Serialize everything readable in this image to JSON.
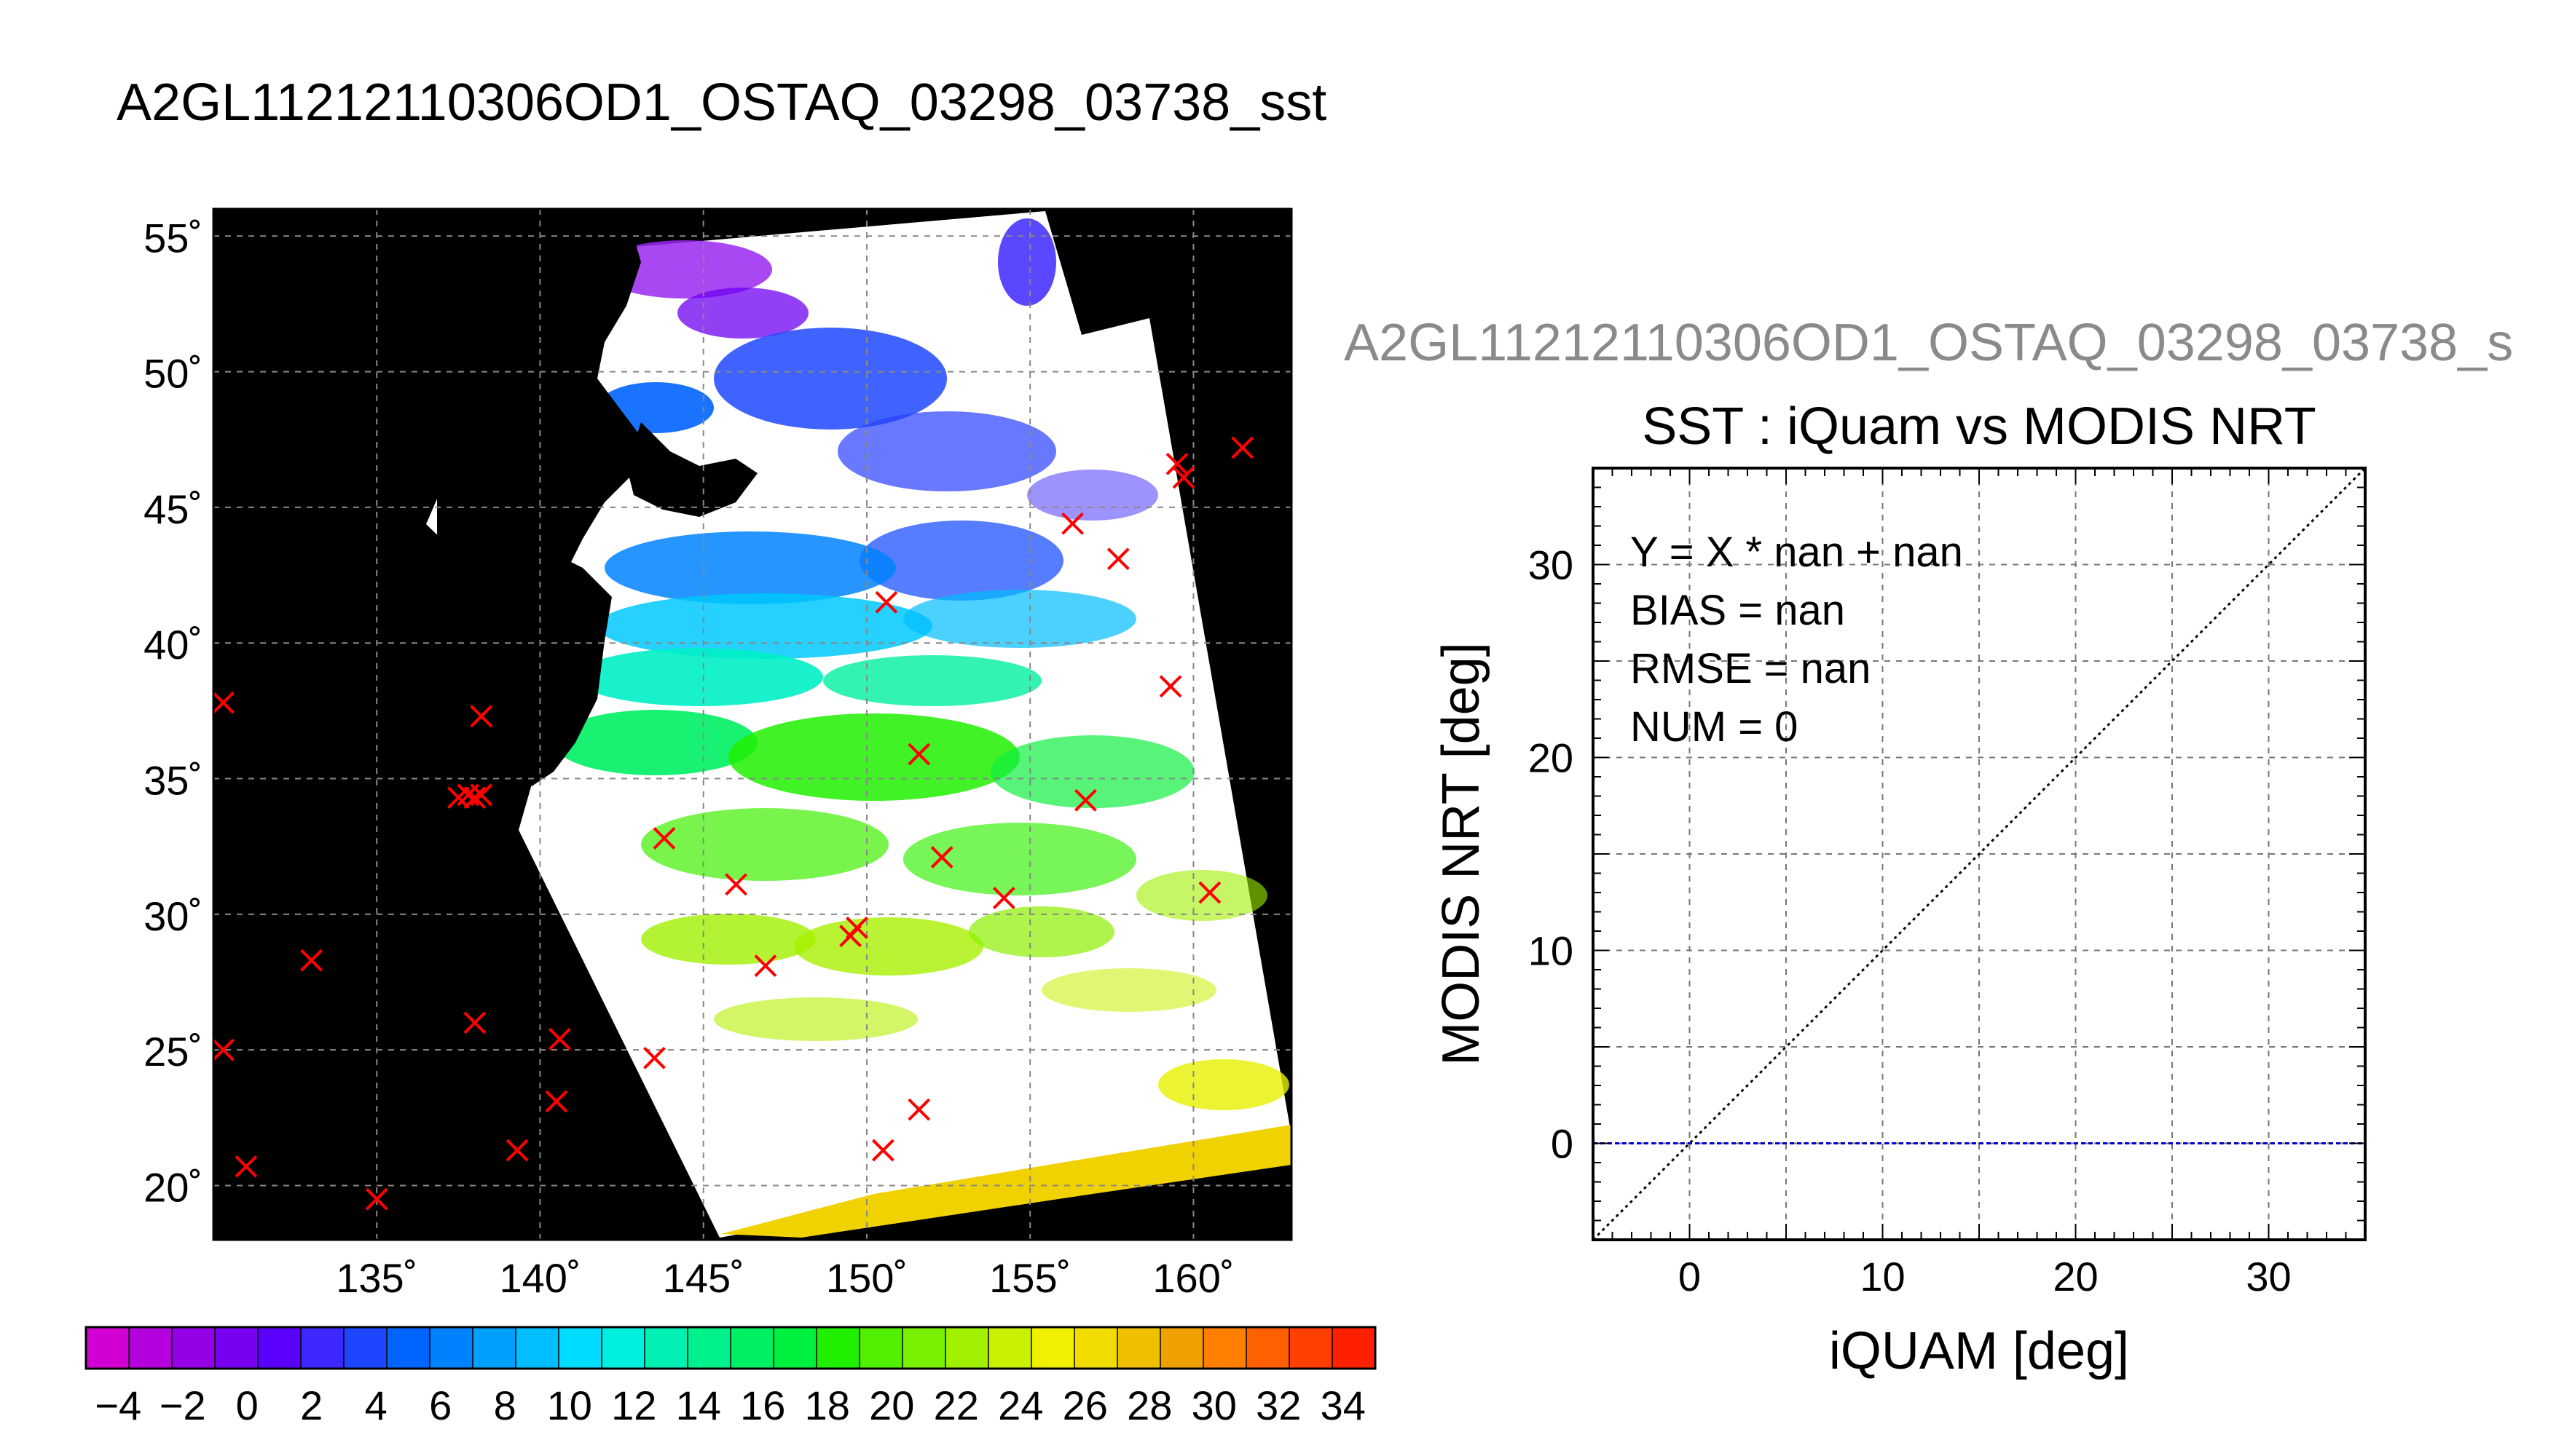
{
  "figure_title": "A2GL11212110306OD1_OSTAQ_03298_03738_sst",
  "right_subtitle_truncated": "A2GL11212110306OD1_OSTAQ_03298_03738_s",
  "chart_data": [
    {
      "type": "heatmap",
      "name": "sst-map",
      "lon_range": [
        130,
        163
      ],
      "lat_range": [
        18,
        56
      ],
      "lon_ticks": [
        135,
        140,
        145,
        150,
        155,
        160
      ],
      "lat_ticks": [
        20,
        25,
        30,
        35,
        40,
        45,
        50,
        55
      ],
      "lon_tick_labels": [
        "135˚",
        "140˚",
        "145˚",
        "150˚",
        "155˚",
        "160˚"
      ],
      "lat_tick_labels": [
        "20˚",
        "25˚",
        "30˚",
        "35˚",
        "40˚",
        "45˚",
        "50˚",
        "55˚"
      ],
      "grid": true,
      "background_color": "#000000",
      "swath_color": "#ffffff",
      "marker_color": "#ff0000",
      "buoy_markers": [
        {
          "lon": 130.3,
          "lat": 37.8
        },
        {
          "lon": 130.3,
          "lat": 25.0
        },
        {
          "lon": 131.0,
          "lat": 20.7
        },
        {
          "lon": 133.0,
          "lat": 28.3
        },
        {
          "lon": 135.0,
          "lat": 19.5
        },
        {
          "lon": 137.5,
          "lat": 34.3
        },
        {
          "lon": 137.8,
          "lat": 34.4
        },
        {
          "lon": 138.0,
          "lat": 34.3
        },
        {
          "lon": 138.2,
          "lat": 34.4
        },
        {
          "lon": 138.2,
          "lat": 37.3
        },
        {
          "lon": 138.0,
          "lat": 26.0
        },
        {
          "lon": 139.3,
          "lat": 21.3
        },
        {
          "lon": 140.5,
          "lat": 23.1
        },
        {
          "lon": 140.6,
          "lat": 25.4
        },
        {
          "lon": 143.5,
          "lat": 24.7
        },
        {
          "lon": 143.8,
          "lat": 32.8
        },
        {
          "lon": 146.0,
          "lat": 31.1
        },
        {
          "lon": 146.9,
          "lat": 28.1
        },
        {
          "lon": 149.5,
          "lat": 29.2
        },
        {
          "lon": 149.7,
          "lat": 29.5
        },
        {
          "lon": 150.5,
          "lat": 21.3
        },
        {
          "lon": 150.6,
          "lat": 41.5
        },
        {
          "lon": 151.6,
          "lat": 22.8
        },
        {
          "lon": 151.6,
          "lat": 35.9
        },
        {
          "lon": 152.3,
          "lat": 32.1
        },
        {
          "lon": 154.2,
          "lat": 30.6
        },
        {
          "lon": 156.3,
          "lat": 44.4
        },
        {
          "lon": 156.7,
          "lat": 34.2
        },
        {
          "lon": 157.7,
          "lat": 43.1
        },
        {
          "lon": 159.3,
          "lat": 38.4
        },
        {
          "lon": 159.5,
          "lat": 46.6
        },
        {
          "lon": 159.7,
          "lat": 46.1
        },
        {
          "lon": 160.5,
          "lat": 30.8
        },
        {
          "lon": 161.5,
          "lat": 47.2
        }
      ]
    },
    {
      "type": "colorbar",
      "name": "sst-colorbar",
      "range": [
        -5,
        35
      ],
      "tick_labels": [
        "−4",
        "−2",
        "0",
        "2",
        "4",
        "6",
        "8",
        "10",
        "12",
        "14",
        "16",
        "18",
        "20",
        "22",
        "24",
        "26",
        "28",
        "30",
        "32",
        "34"
      ],
      "colors": [
        "#d200d2",
        "#b400dc",
        "#9600e6",
        "#7800f0",
        "#5a00fa",
        "#3c28ff",
        "#1e46ff",
        "#0064ff",
        "#0082ff",
        "#00a0ff",
        "#00beff",
        "#00dcff",
        "#00f0e0",
        "#00f0b4",
        "#00f08c",
        "#00f064",
        "#00f040",
        "#1ef000",
        "#50f000",
        "#78f000",
        "#a0f000",
        "#c8f000",
        "#f0f000",
        "#f0dc00",
        "#f0c000",
        "#f0a000",
        "#ff8000",
        "#ff6000",
        "#ff4000",
        "#ff2000"
      ]
    },
    {
      "type": "scatter",
      "name": "iquam-vs-modis",
      "title": "SST : iQuam vs MODIS NRT",
      "xlabel": "iQUAM [deg]",
      "ylabel": "MODIS NRT [deg]",
      "xlim": [
        -5,
        35
      ],
      "ylim": [
        -5,
        35
      ],
      "x_ticks": [
        0,
        10,
        20,
        30
      ],
      "y_ticks": [
        0,
        10,
        20,
        30
      ],
      "minor_ticks": [
        5,
        15,
        25
      ],
      "grid": true,
      "points": [],
      "reference_lines": [
        {
          "name": "one-to-one",
          "x": [
            -5,
            35
          ],
          "y": [
            -5,
            35
          ],
          "color": "#000000"
        },
        {
          "name": "zero-line",
          "x": [
            -5,
            35
          ],
          "y": [
            0,
            0
          ],
          "color": "#0000cc"
        }
      ],
      "stats": {
        "fit_label": "Y = X * nan + nan",
        "bias_label": "BIAS = nan",
        "rmse_label": "RMSE = nan",
        "num_label": "NUM = 0"
      }
    }
  ]
}
